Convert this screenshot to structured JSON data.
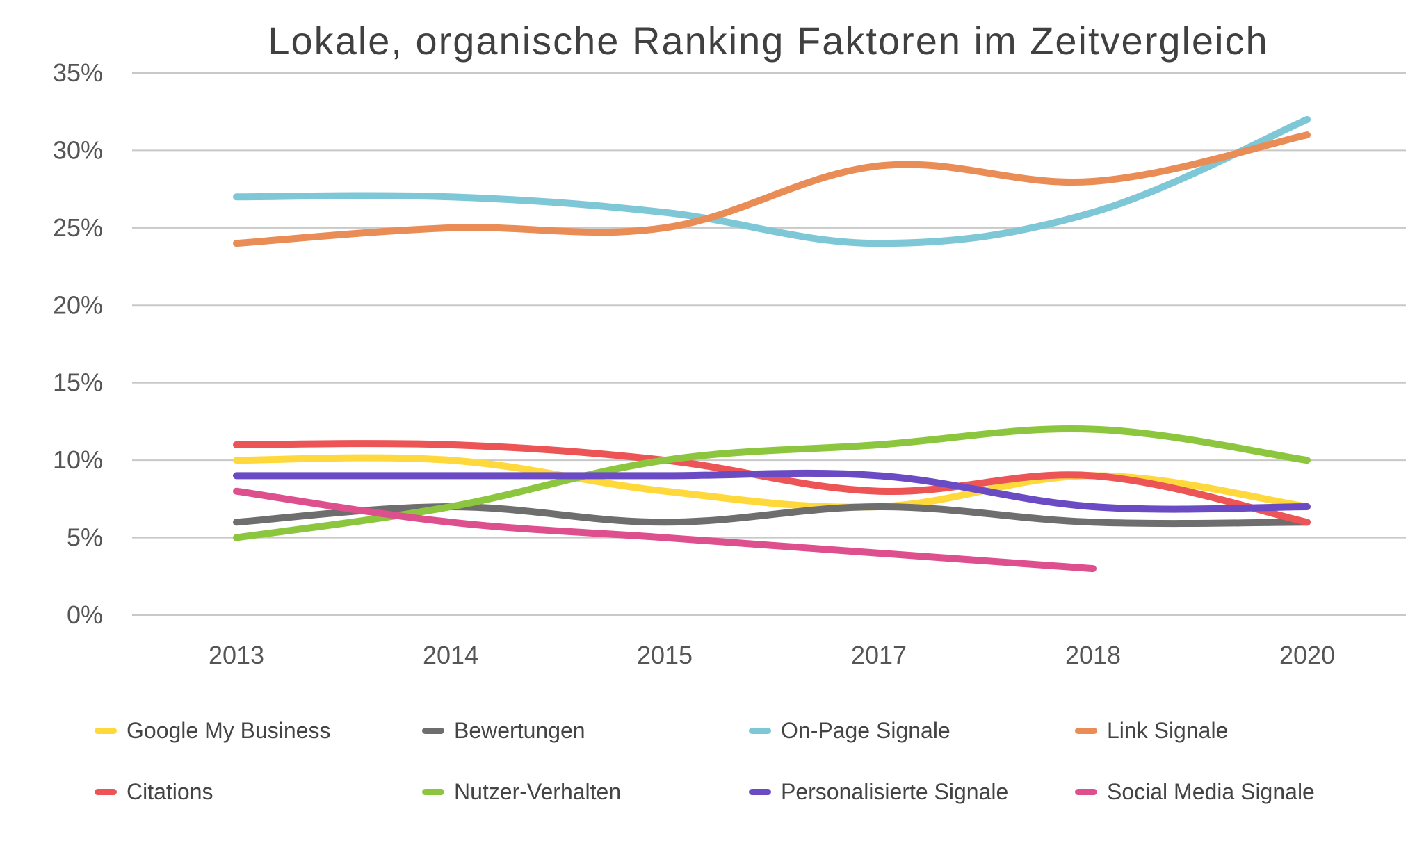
{
  "chart_data": {
    "type": "line",
    "title": "Lokale, organische Ranking Faktoren im Zeitvergleich",
    "xlabel": "",
    "ylabel": "",
    "categories": [
      "2013",
      "2014",
      "2015",
      "2017",
      "2018",
      "2020"
    ],
    "y_ticks": [
      "0%",
      "5%",
      "10%",
      "15%",
      "20%",
      "25%",
      "30%",
      "35%"
    ],
    "ylim": [
      0,
      35
    ],
    "grid": true,
    "legend_position": "bottom",
    "series": [
      {
        "name": "Google My Business",
        "color": "#FFD93B",
        "values": [
          10,
          10,
          8,
          7,
          9,
          7
        ]
      },
      {
        "name": "Bewertungen",
        "color": "#6E6E6E",
        "values": [
          6,
          7,
          6,
          7,
          6,
          6
        ]
      },
      {
        "name": "On-Page Signale",
        "color": "#7EC7D6",
        "values": [
          27,
          27,
          26,
          24,
          26,
          32
        ]
      },
      {
        "name": "Link Signale",
        "color": "#E98C55",
        "values": [
          24,
          25,
          25,
          29,
          28,
          31
        ]
      },
      {
        "name": "Citations",
        "color": "#EC5455",
        "values": [
          11,
          11,
          10,
          8,
          9,
          6
        ]
      },
      {
        "name": "Nutzer-Verhalten",
        "color": "#8CC63F",
        "values": [
          5,
          7,
          10,
          11,
          12,
          10
        ]
      },
      {
        "name": "Personalisierte Signale",
        "color": "#6A4BC4",
        "values": [
          9,
          9,
          9,
          9,
          7,
          7
        ]
      },
      {
        "name": "Social Media Signale",
        "color": "#DE4F8E",
        "values": [
          8,
          6,
          5,
          4,
          3,
          null
        ]
      }
    ]
  }
}
